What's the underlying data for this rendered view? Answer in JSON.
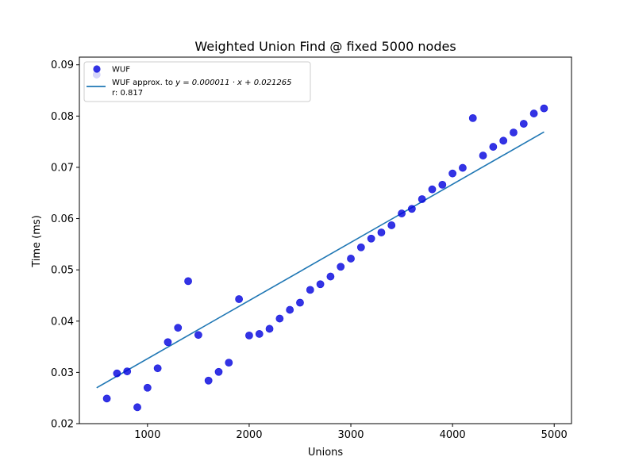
{
  "chart_data": {
    "type": "scatter",
    "title": "Weighted Union Find @ fixed 5000 nodes",
    "xlabel": "Unions",
    "ylabel": "Time (ms)",
    "xlim": [
      330,
      5170
    ],
    "ylim": [
      0.02,
      0.0915
    ],
    "xticks": [
      1000,
      2000,
      3000,
      4000,
      5000
    ],
    "xtick_labels": [
      "1000",
      "2000",
      "3000",
      "4000",
      "5000"
    ],
    "yticks": [
      0.02,
      0.03,
      0.04,
      0.05,
      0.06,
      0.07,
      0.08,
      0.09
    ],
    "ytick_labels": [
      "0.02",
      "0.03",
      "0.04",
      "0.05",
      "0.06",
      "0.07",
      "0.08",
      "0.09"
    ],
    "grid": false,
    "legend_position": "top-left",
    "series": [
      {
        "name": "WUF",
        "kind": "scatter",
        "color": "#0000dd",
        "x": [
          500,
          600,
          700,
          800,
          900,
          1000,
          1100,
          1200,
          1300,
          1400,
          1500,
          1600,
          1700,
          1800,
          1900,
          2000,
          2100,
          2200,
          2300,
          2400,
          2500,
          2600,
          2700,
          2800,
          2900,
          3000,
          3100,
          3200,
          3300,
          3400,
          3500,
          3600,
          3700,
          3800,
          3900,
          4000,
          4100,
          4200,
          4300,
          4400,
          4500,
          4600,
          4700,
          4800,
          4900
        ],
        "y": [
          0.0881,
          0.0249,
          0.0298,
          0.0302,
          0.0232,
          0.027,
          0.0308,
          0.0359,
          0.0387,
          0.0478,
          0.0373,
          0.0284,
          0.0301,
          0.0319,
          0.0443,
          0.0372,
          0.0375,
          0.0385,
          0.0405,
          0.0422,
          0.0436,
          0.0461,
          0.0472,
          0.0487,
          0.0506,
          0.0522,
          0.0544,
          0.0561,
          0.0573,
          0.0587,
          0.061,
          0.0619,
          0.0638,
          0.0657,
          0.0666,
          0.0688,
          0.0699,
          0.0796,
          0.0723,
          0.074,
          0.0752,
          0.0768,
          0.0785,
          0.0805,
          0.0815
        ]
      },
      {
        "name": "WUF approx. to y = 0.000011 · x + 0.021265",
        "kind": "line",
        "color": "#1f77b4",
        "x": [
          500,
          4900
        ],
        "y": [
          0.027,
          0.0769
        ]
      }
    ],
    "legend": {
      "entries": [
        {
          "label": "WUF",
          "marker": "circle",
          "color": "#0000dd"
        },
        {
          "label_prefix": "WUF approx. to ",
          "label_math": "y = 0.000011 · x + 0.021265",
          "marker": "line",
          "color": "#1f77b4"
        }
      ],
      "extra_text": "r: 0.817"
    }
  }
}
